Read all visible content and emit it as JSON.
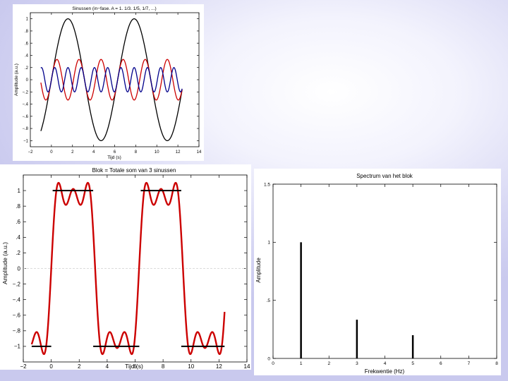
{
  "chart_data": [
    {
      "type": "line",
      "title": "Sinussen (in−fase. A = 1. 1/3. 1/5, 1/7, ...)",
      "xlabel": "Tijd (s)",
      "ylabel": "Amplitude (a.u.)",
      "xlim": [
        -2,
        14
      ],
      "ylim": [
        -1.1,
        1.1
      ],
      "xticks": [
        -2,
        0,
        2,
        4,
        6,
        8,
        10,
        12,
        14
      ],
      "yticks": [
        -1,
        -0.8,
        -0.6,
        -0.4,
        -0.2,
        0,
        0.2,
        0.4,
        0.6,
        0.8,
        1
      ],
      "grid": false,
      "x_range": [
        -1,
        12.4
      ],
      "series": [
        {
          "amplitude": 1,
          "frequency": 1,
          "color": "#000000"
        },
        {
          "amplitude": 0.3333,
          "frequency": 3,
          "color": "#cc0000"
        },
        {
          "amplitude": 0.2,
          "frequency": 5,
          "color": "#00008b"
        }
      ],
      "curve_formula": "amplitude * sin(frequency * t)"
    },
    {
      "type": "line",
      "title": "Blok = Totale som van  3 sinussen",
      "xlabel": "Tijd (s)",
      "ylabel": "Amplitude (a.u.)",
      "xlim": [
        -2,
        14
      ],
      "ylim": [
        -1.2,
        1.2
      ],
      "xticks": [
        -2,
        0,
        2,
        4,
        6,
        8,
        10,
        12,
        14
      ],
      "yticks": [
        -1,
        -0.8,
        -0.6,
        -0.4,
        -0.2,
        0,
        0.2,
        0.4,
        0.6,
        0.8,
        1
      ],
      "grid": false,
      "zero_line": true,
      "x_range": [
        -1.4,
        12.4
      ],
      "series": [
        {
          "components": [
            [
              1,
              1
            ],
            [
              0.3333,
              3
            ],
            [
              0.2,
              5
            ]
          ],
          "scale": 1.1781,
          "color": "#cc0000"
        }
      ],
      "level_segments": [
        {
          "x": [
            -1.4,
            0
          ],
          "y": -1
        },
        {
          "x": [
            0.1,
            3.0
          ],
          "y": 1
        },
        {
          "x": [
            3.0,
            6.3
          ],
          "y": -1
        },
        {
          "x": [
            6.4,
            9.3
          ],
          "y": 1
        },
        {
          "x": [
            9.3,
            12.4
          ],
          "y": -1
        }
      ],
      "level_color": "#000000"
    },
    {
      "type": "bar",
      "title": "Spectrum van het blok",
      "xlabel": "Frekwentie (Hz)",
      "ylabel": "Amplitude",
      "xlim": [
        0,
        8
      ],
      "ylim": [
        0,
        1.5
      ],
      "xticks": [
        0,
        1,
        2,
        3,
        4,
        5,
        6,
        7,
        8
      ],
      "yticks": [
        0,
        0.5,
        1,
        1.5
      ],
      "grid": false,
      "x": [
        1,
        3,
        5
      ],
      "values": [
        1,
        0.3333,
        0.2
      ]
    }
  ]
}
